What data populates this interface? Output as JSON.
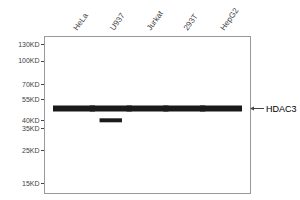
{
  "chart_data": {
    "type": "scatter",
    "categories": [
      "HeLa",
      "U937",
      "Jurkat",
      "293T",
      "HepG2"
    ],
    "series": [
      {
        "values": [
          48,
          48,
          48,
          48,
          48
        ],
        "color": "#1a1a1a",
        "marker": "line-ew"
      },
      {
        "values": [
          null,
          40,
          null,
          null,
          null
        ],
        "color": "#1a1a1a",
        "marker": "line-ew"
      }
    ],
    "log": "y",
    "ylim": [
      13,
      145
    ],
    "yticks": [
      {
        "value": 130,
        "label": "130KD"
      },
      {
        "value": 100,
        "label": "100KD"
      },
      {
        "value": 70,
        "label": "70KD"
      },
      {
        "value": 55,
        "label": "55KD"
      },
      {
        "value": 40,
        "label": "40KD"
      },
      {
        "value": 35,
        "label": "35KD"
      },
      {
        "value": 25,
        "label": "25KD"
      },
      {
        "value": 15,
        "label": "15KD"
      }
    ],
    "annotations": [
      {
        "text": "HDAC3",
        "y": 48
      }
    ],
    "grid": false
  }
}
